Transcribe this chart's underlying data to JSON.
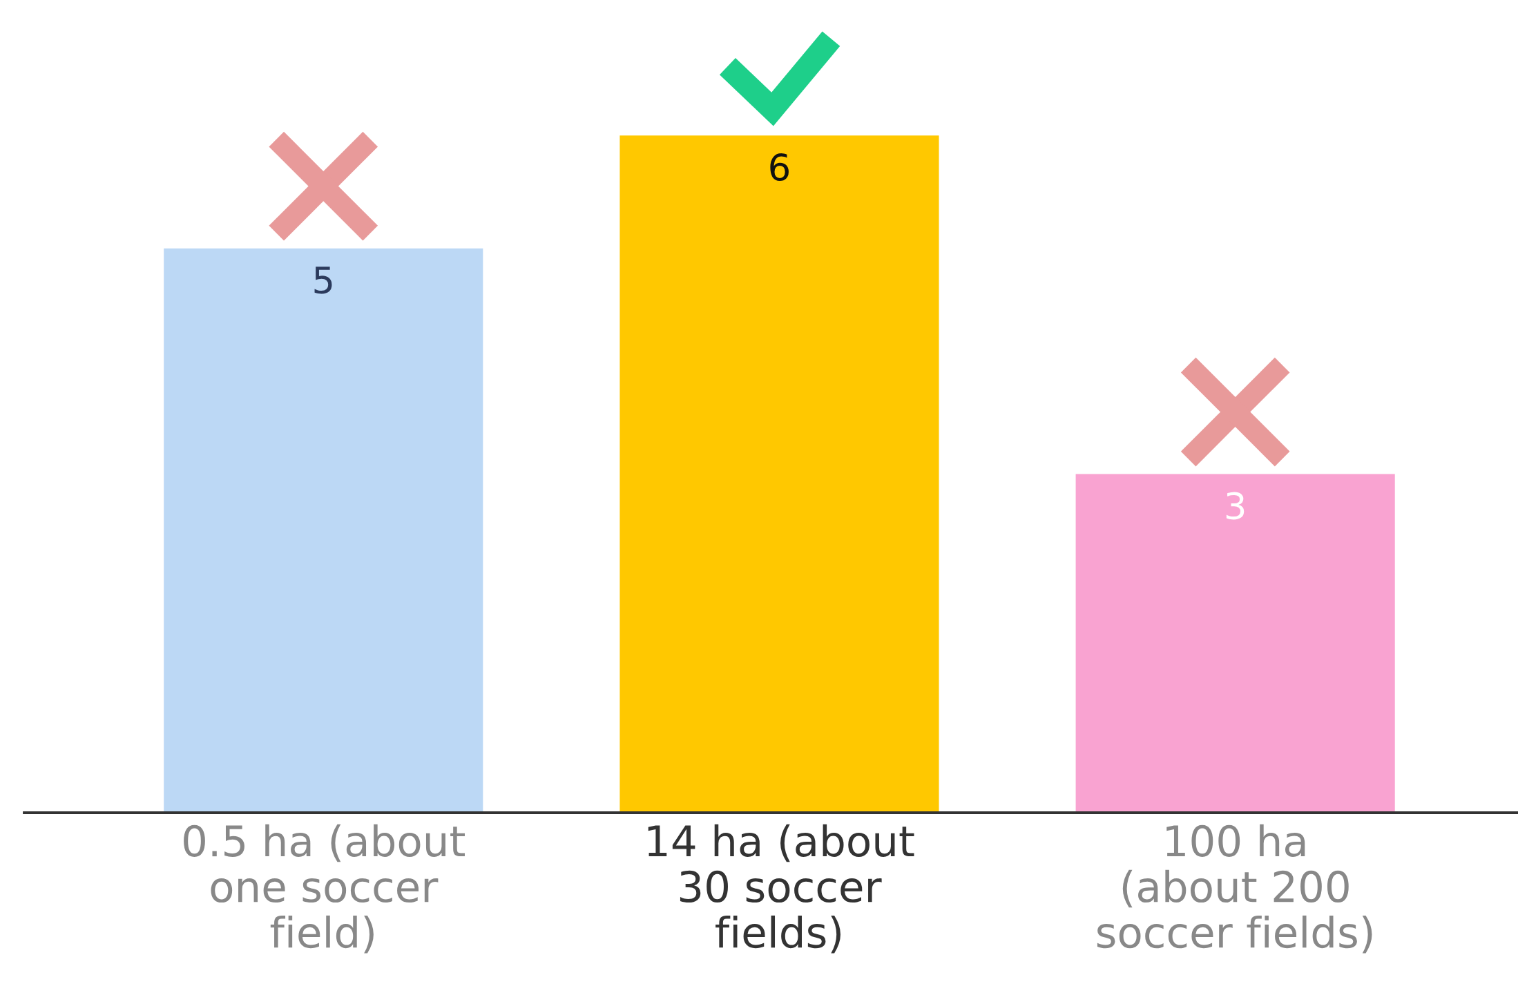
{
  "chart_data": {
    "type": "bar",
    "categories": [
      "0.5 ha (about\none soccer\nfield)",
      "14 ha (about\n30 soccer\nfields)",
      "100 ha\n(about 200\nsoccer fields)"
    ],
    "values": [
      5,
      6,
      3
    ],
    "colors": [
      "#bcd8f5",
      "#ffc800",
      "#f9a3d1"
    ],
    "data_labels": true
  }
}
